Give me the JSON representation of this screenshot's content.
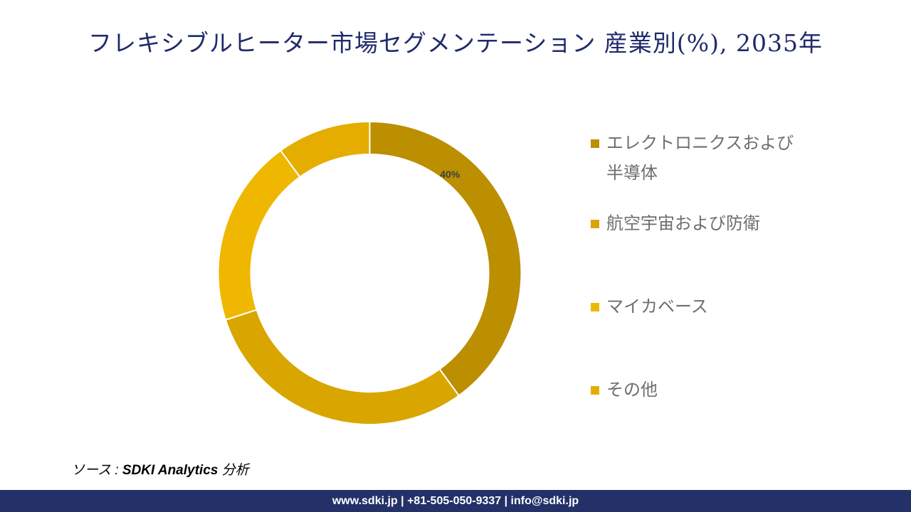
{
  "title": "フレキシブルヒーター市場セグメンテーション 産業別(%), 2035年",
  "chart_data": {
    "type": "pie",
    "subtype": "donut",
    "title": "フレキシブルヒーター市場セグメンテーション 産業別(%), 2035年",
    "categories": [
      "エレクトロニクスおよび半導体",
      "航空宇宙および防衛",
      "マイカベース",
      "その他"
    ],
    "values": [
      40,
      30,
      20,
      10
    ],
    "data_labels": [
      "40%",
      "",
      "",
      ""
    ],
    "colors": [
      "#BB8F00",
      "#D9A600",
      "#EFB700",
      "#E4AD00"
    ],
    "legend_position": "right"
  },
  "source": {
    "prefix": "ソース : ",
    "text": "SDKI Analytics",
    "suffix": " 分析"
  },
  "footer": "www.sdki.jp | +81-505-050-9337 | info@sdki.jp"
}
